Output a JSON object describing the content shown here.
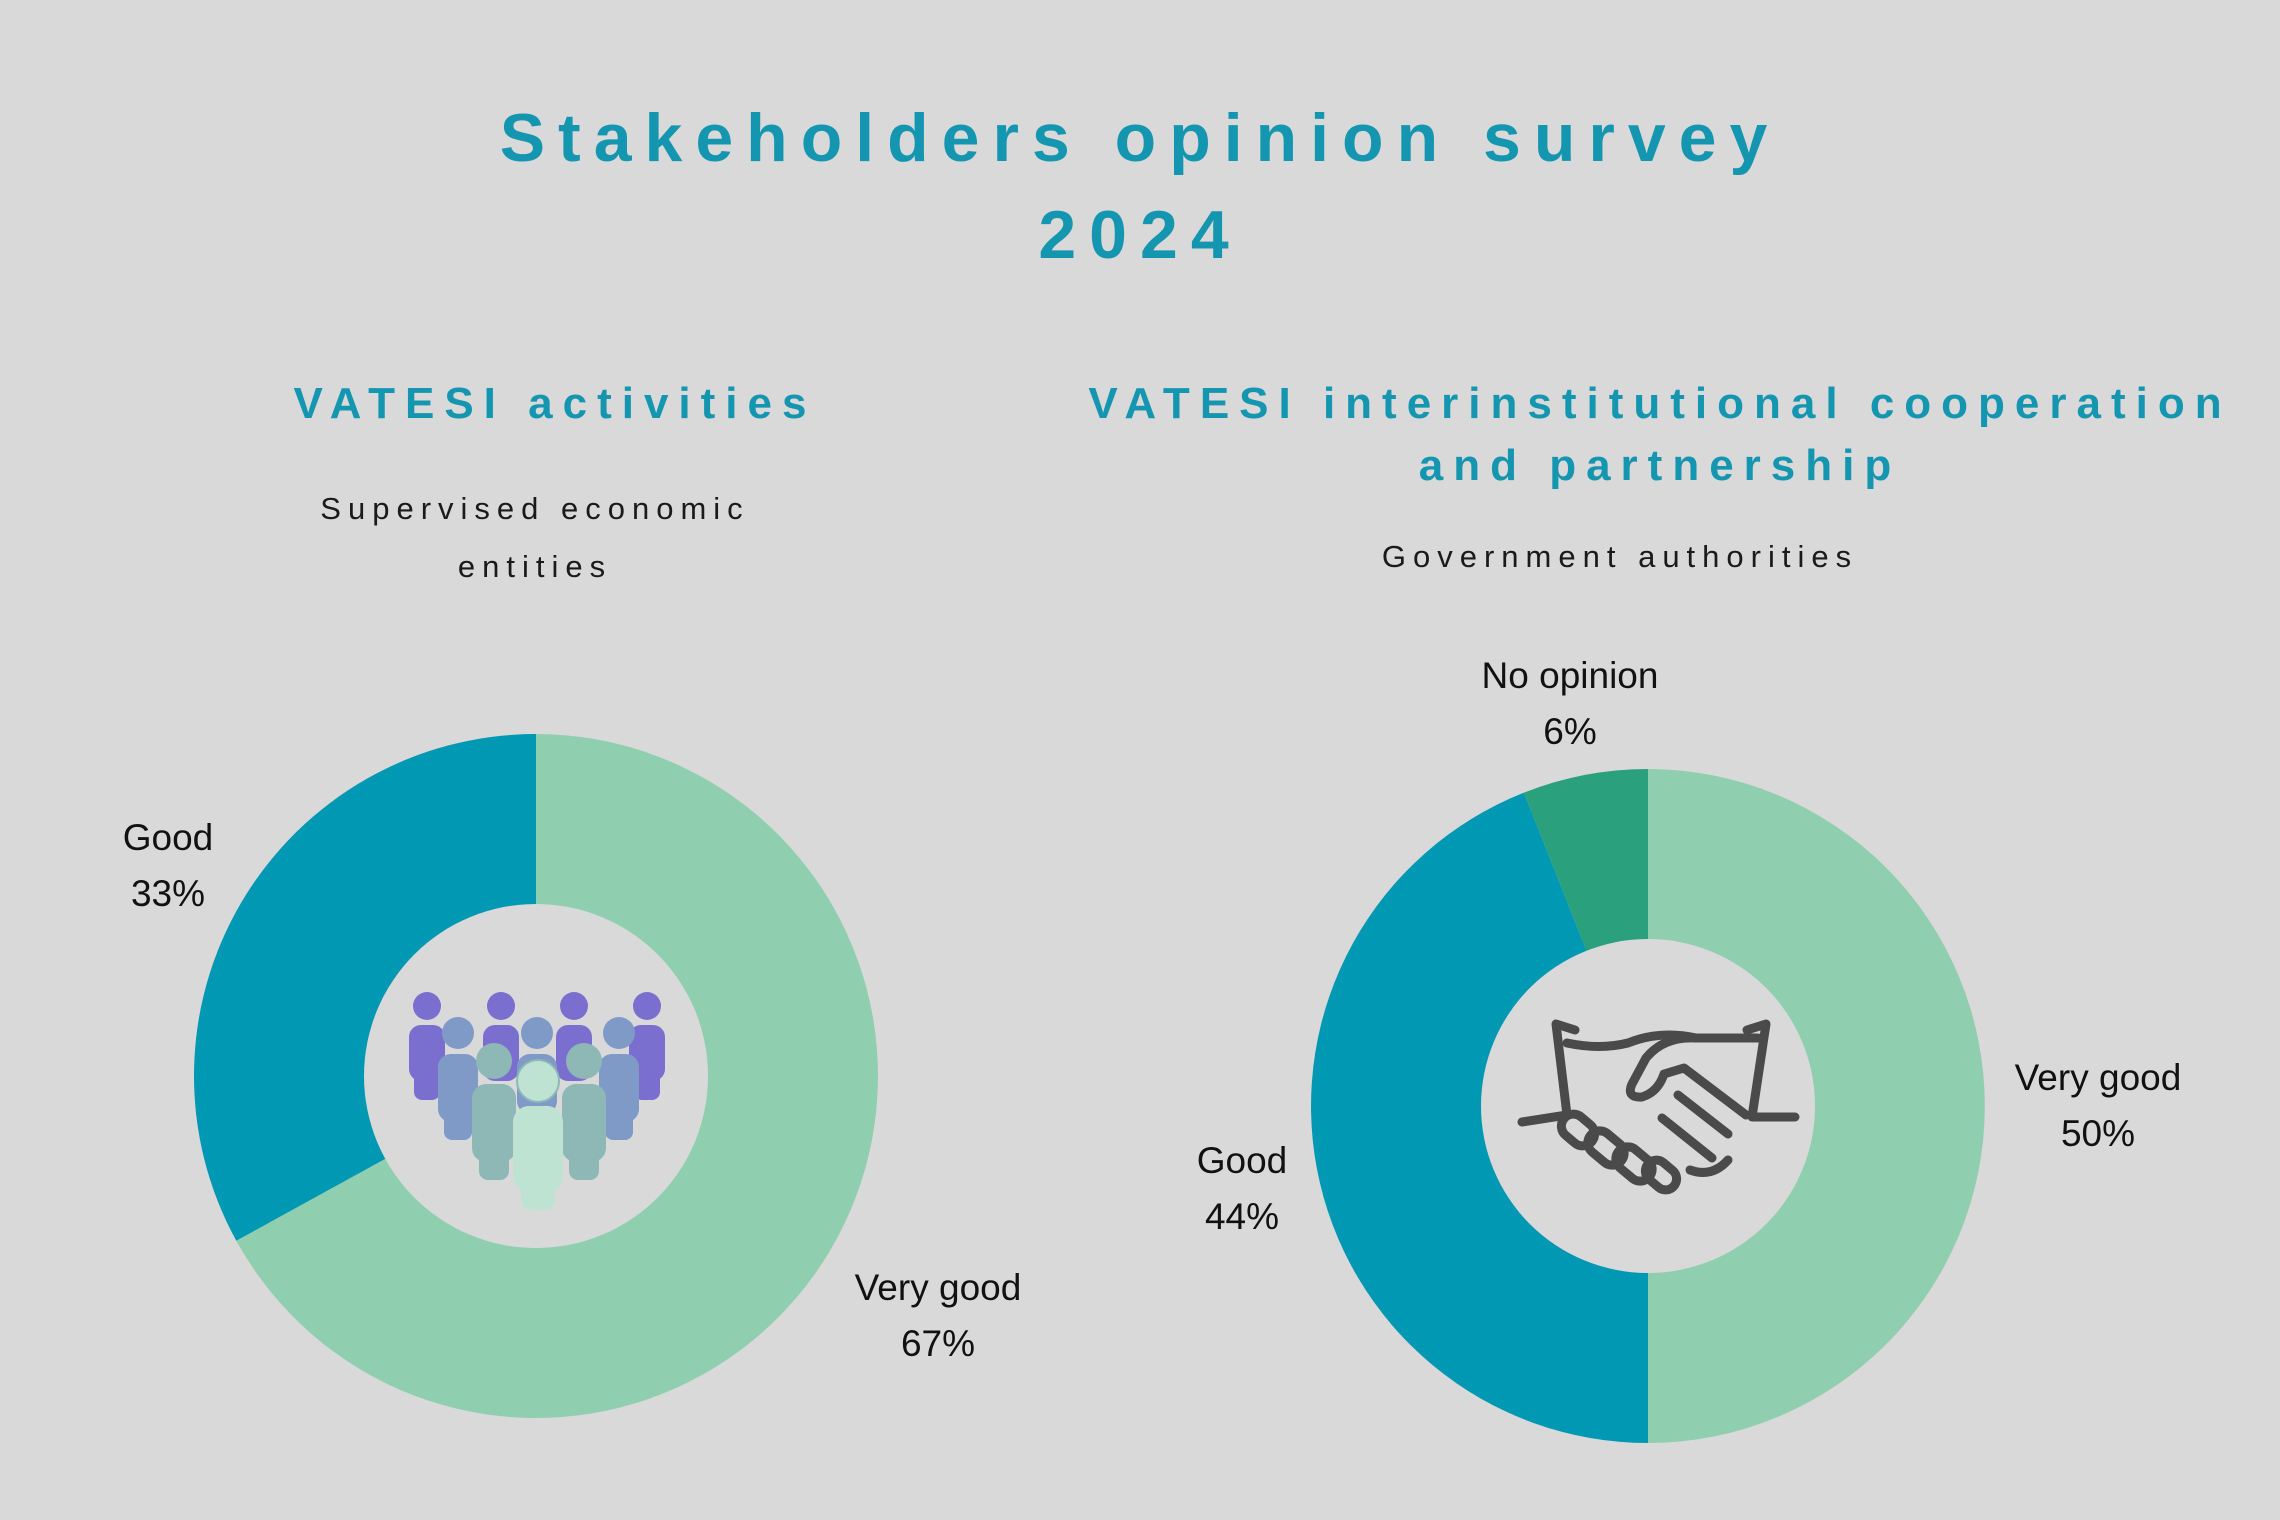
{
  "title_lines": [
    "Stakeholders opinion survey",
    "2024"
  ],
  "colors": {
    "title": "#1596b0",
    "background": "#d9d9d9",
    "very_good": "#8fcfb0",
    "good": "#0198b4",
    "no_opinion": "#2aa07c",
    "hole": "#d9d9d9",
    "handshake": "#4a4a4a"
  },
  "icons": {
    "left_center": "people-group-icon",
    "right_center": "handshake-icon"
  },
  "chart_data": [
    {
      "type": "pie",
      "variant": "donut",
      "title_lines": [
        "VATESI activities"
      ],
      "subtitle_lines": [
        "Supervised economic",
        "entities"
      ],
      "slices": [
        {
          "label": "Very good",
          "value": 67,
          "display": "67%",
          "color": "#8fcfb0"
        },
        {
          "label": "Good",
          "value": 33,
          "display": "33%",
          "color": "#0198b4"
        }
      ]
    },
    {
      "type": "pie",
      "variant": "donut",
      "title_lines": [
        "VATESI interinstitutional cooperation",
        "and partnership"
      ],
      "subtitle_lines": [
        "Government authorities"
      ],
      "slices": [
        {
          "label": "Very good",
          "value": 50,
          "display": "50%",
          "color": "#8fcfb0"
        },
        {
          "label": "Good",
          "value": 44,
          "display": "44%",
          "color": "#0198b4"
        },
        {
          "label": "No opinion",
          "value": 6,
          "display": "6%",
          "color": "#2aa07c"
        }
      ]
    }
  ]
}
